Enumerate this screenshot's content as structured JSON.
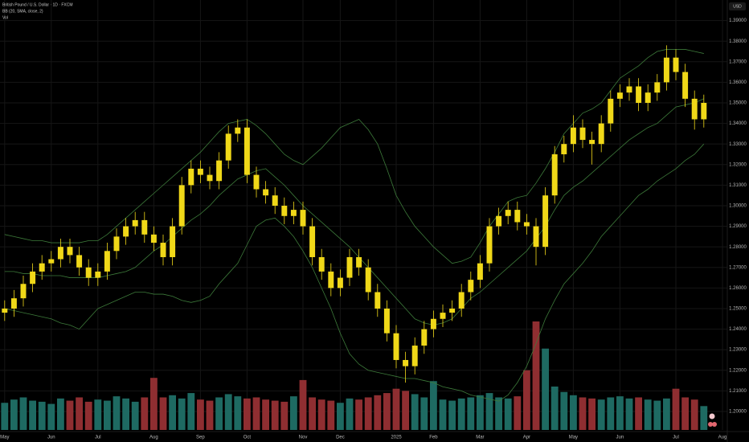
{
  "header": {
    "symbol": "British Pound / U.S. Dollar · 1D · FXCM",
    "indicator": "BB (20, SMA, close, 2)",
    "volume_label": "Vol",
    "currency": "USD"
  },
  "chart_data": {
    "type": "candlestick",
    "categories": [
      "May",
      null,
      null,
      null,
      null,
      "Jun",
      null,
      null,
      null,
      null,
      "Jul",
      null,
      null,
      null,
      null,
      null,
      "Aug",
      null,
      null,
      null,
      null,
      "Sep",
      null,
      null,
      null,
      null,
      "Oct",
      null,
      null,
      null,
      null,
      null,
      "Nov",
      null,
      null,
      null,
      "Dec",
      null,
      null,
      null,
      null,
      null,
      "2025",
      null,
      null,
      null,
      "Feb",
      null,
      null,
      null,
      null,
      "Mar",
      null,
      null,
      null,
      null,
      "Apr",
      null,
      null,
      null,
      null,
      "May",
      null,
      null,
      null,
      null,
      "Jun",
      null,
      null,
      null,
      null,
      null,
      "Jul",
      null,
      null,
      null,
      null,
      "Aug"
    ],
    "open": [
      1.248,
      1.25,
      1.255,
      1.262,
      1.268,
      1.272,
      1.274,
      1.28,
      1.276,
      1.27,
      1.265,
      1.268,
      1.278,
      1.285,
      1.29,
      1.293,
      1.286,
      1.282,
      1.275,
      1.29,
      1.31,
      1.318,
      1.315,
      1.312,
      1.322,
      1.335,
      1.338,
      1.315,
      1.308,
      1.305,
      1.3,
      1.295,
      1.298,
      1.29,
      1.275,
      1.268,
      1.26,
      1.265,
      1.275,
      1.27,
      1.258,
      1.25,
      1.238,
      1.225,
      1.222,
      1.232,
      1.24,
      1.245,
      1.248,
      1.25,
      1.258,
      1.264,
      1.272,
      1.29,
      1.295,
      1.298,
      1.292,
      1.29,
      1.28,
      1.305,
      1.325,
      1.33,
      1.338,
      1.332,
      1.33,
      1.34,
      1.352,
      1.355,
      1.358,
      1.35,
      1.355,
      1.36,
      1.372,
      1.365,
      1.352,
      1.342,
      null,
      null
    ],
    "high": [
      1.254,
      1.259,
      1.266,
      1.272,
      1.276,
      1.278,
      1.284,
      1.284,
      1.28,
      1.274,
      1.272,
      1.282,
      1.289,
      1.294,
      1.297,
      1.297,
      1.29,
      1.286,
      1.294,
      1.314,
      1.322,
      1.322,
      1.319,
      1.326,
      1.339,
      1.342,
      1.342,
      1.319,
      1.312,
      1.309,
      1.304,
      1.302,
      1.302,
      1.294,
      1.279,
      1.272,
      1.269,
      1.279,
      1.279,
      1.274,
      1.262,
      1.254,
      1.242,
      1.229,
      1.236,
      1.244,
      1.249,
      1.252,
      1.254,
      1.262,
      1.268,
      1.276,
      1.294,
      1.299,
      1.302,
      1.302,
      1.296,
      1.294,
      1.309,
      1.329,
      1.334,
      1.344,
      1.342,
      1.336,
      1.344,
      1.356,
      1.359,
      1.362,
      1.362,
      1.359,
      1.364,
      1.378,
      1.376,
      1.369,
      1.356,
      1.354,
      null,
      null
    ],
    "low": [
      1.244,
      1.246,
      1.251,
      1.258,
      1.264,
      1.268,
      1.27,
      1.272,
      1.266,
      1.261,
      1.261,
      1.264,
      1.274,
      1.281,
      1.286,
      1.282,
      1.278,
      1.271,
      1.271,
      1.286,
      1.306,
      1.311,
      1.308,
      1.308,
      1.318,
      1.331,
      1.311,
      1.304,
      1.301,
      1.296,
      1.291,
      1.291,
      1.286,
      1.271,
      1.264,
      1.256,
      1.256,
      1.261,
      1.266,
      1.254,
      1.246,
      1.234,
      1.221,
      1.214,
      1.218,
      1.228,
      1.236,
      1.241,
      1.244,
      1.246,
      1.254,
      1.26,
      1.268,
      1.286,
      1.291,
      1.288,
      1.286,
      1.271,
      1.276,
      1.301,
      1.321,
      1.326,
      1.328,
      1.32,
      1.326,
      1.336,
      1.348,
      1.351,
      1.346,
      1.346,
      1.351,
      1.356,
      1.361,
      1.348,
      1.337,
      1.338,
      null,
      null
    ],
    "close": [
      1.25,
      1.255,
      1.262,
      1.268,
      1.272,
      1.274,
      1.28,
      1.276,
      1.27,
      1.265,
      1.268,
      1.278,
      1.285,
      1.29,
      1.293,
      1.286,
      1.282,
      1.275,
      1.29,
      1.31,
      1.318,
      1.315,
      1.312,
      1.322,
      1.335,
      1.338,
      1.315,
      1.308,
      1.305,
      1.3,
      1.295,
      1.298,
      1.29,
      1.275,
      1.268,
      1.26,
      1.265,
      1.275,
      1.27,
      1.258,
      1.25,
      1.238,
      1.225,
      1.222,
      1.232,
      1.24,
      1.245,
      1.248,
      1.25,
      1.258,
      1.264,
      1.272,
      1.29,
      1.295,
      1.298,
      1.292,
      1.29,
      1.28,
      1.305,
      1.325,
      1.33,
      1.338,
      1.332,
      1.33,
      1.34,
      1.352,
      1.355,
      1.358,
      1.35,
      1.355,
      1.36,
      1.372,
      1.365,
      1.352,
      1.342,
      1.35,
      null,
      null
    ],
    "candle_color": "#f0d818",
    "bands": {
      "color": "#3d7a3a",
      "upper": [
        1.286,
        1.285,
        1.284,
        1.283,
        1.283,
        1.282,
        1.282,
        1.282,
        1.282,
        1.283,
        1.283,
        1.286,
        1.29,
        1.294,
        1.298,
        1.302,
        1.306,
        1.31,
        1.314,
        1.318,
        1.322,
        1.326,
        1.331,
        1.336,
        1.34,
        1.341,
        1.342,
        1.339,
        1.335,
        1.33,
        1.325,
        1.322,
        1.32,
        1.324,
        1.328,
        1.333,
        1.338,
        1.34,
        1.342,
        1.337,
        1.33,
        1.318,
        1.305,
        1.297,
        1.29,
        1.285,
        1.28,
        1.276,
        1.272,
        1.273,
        1.275,
        1.282,
        1.29,
        1.296,
        1.302,
        1.304,
        1.305,
        1.311,
        1.318,
        1.326,
        1.335,
        1.34,
        1.345,
        1.347,
        1.35,
        1.356,
        1.362,
        1.365,
        1.368,
        1.372,
        1.375,
        1.376,
        1.376,
        1.376,
        1.375,
        1.374,
        null,
        null
      ],
      "basis": [
        1.268,
        1.268,
        1.267,
        1.267,
        1.266,
        1.266,
        1.266,
        1.265,
        1.265,
        1.265,
        1.265,
        1.266,
        1.267,
        1.268,
        1.27,
        1.274,
        1.278,
        1.281,
        1.285,
        1.289,
        1.293,
        1.296,
        1.3,
        1.305,
        1.309,
        1.313,
        1.315,
        1.317,
        1.318,
        1.314,
        1.31,
        1.305,
        1.3,
        1.296,
        1.292,
        1.288,
        1.284,
        1.28,
        1.275,
        1.27,
        1.265,
        1.26,
        1.255,
        1.25,
        1.245,
        1.243,
        1.242,
        1.243,
        1.245,
        1.25,
        1.255,
        1.258,
        1.262,
        1.266,
        1.27,
        1.274,
        1.278,
        1.284,
        1.29,
        1.298,
        1.305,
        1.309,
        1.312,
        1.316,
        1.32,
        1.324,
        1.328,
        1.332,
        1.335,
        1.338,
        1.34,
        1.344,
        1.348,
        1.349,
        1.35,
        1.352,
        null,
        null
      ],
      "lower": [
        1.25,
        1.249,
        1.248,
        1.247,
        1.246,
        1.245,
        1.243,
        1.242,
        1.24,
        1.245,
        1.25,
        1.252,
        1.254,
        1.256,
        1.258,
        1.258,
        1.257,
        1.257,
        1.256,
        1.254,
        1.253,
        1.254,
        1.256,
        1.262,
        1.267,
        1.272,
        1.281,
        1.29,
        1.293,
        1.294,
        1.29,
        1.285,
        1.278,
        1.27,
        1.26,
        1.25,
        1.238,
        1.228,
        1.223,
        1.22,
        1.219,
        1.218,
        1.217,
        1.216,
        1.216,
        1.215,
        1.214,
        1.212,
        1.211,
        1.21,
        1.208,
        1.207,
        1.206,
        1.205,
        1.208,
        1.214,
        1.222,
        1.233,
        1.245,
        1.254,
        1.262,
        1.267,
        1.272,
        1.278,
        1.285,
        1.29,
        1.295,
        1.3,
        1.305,
        1.308,
        1.312,
        1.315,
        1.318,
        1.322,
        1.325,
        1.33,
        null,
        null
      ]
    },
    "volume": {
      "ylim": [
        0,
        100
      ],
      "up_color": "#1e6a62",
      "down_color": "#8f2e31",
      "values": [
        25,
        28,
        30,
        27,
        26,
        24,
        29,
        27,
        30,
        26,
        28,
        27,
        31,
        29,
        26,
        30,
        48,
        30,
        32,
        29,
        34,
        28,
        27,
        30,
        33,
        31,
        29,
        30,
        28,
        27,
        26,
        31,
        46,
        30,
        28,
        27,
        25,
        29,
        28,
        30,
        32,
        34,
        38,
        36,
        33,
        30,
        45,
        28,
        27,
        29,
        30,
        32,
        34,
        30,
        29,
        31,
        55,
        100,
        75,
        40,
        35,
        32,
        30,
        29,
        28,
        30,
        31,
        29,
        30,
        28,
        27,
        29,
        38,
        30,
        28,
        22,
        null,
        null
      ]
    },
    "ylim": [
      1.191,
      1.4
    ],
    "yticks": [
      {
        "value": 1.39,
        "label": "1.39000"
      },
      {
        "value": 1.38,
        "label": "1.38000"
      },
      {
        "value": 1.37,
        "label": "1.37000"
      },
      {
        "value": 1.36,
        "label": "1.36000"
      },
      {
        "value": 1.35,
        "label": "1.35000"
      },
      {
        "value": 1.34,
        "label": "1.34000"
      },
      {
        "value": 1.33,
        "label": "1.33000"
      },
      {
        "value": 1.32,
        "label": "1.32000"
      },
      {
        "value": 1.31,
        "label": "1.31000"
      },
      {
        "value": 1.3,
        "label": "1.30000"
      },
      {
        "value": 1.29,
        "label": "1.29000"
      },
      {
        "value": 1.28,
        "label": "1.28000"
      },
      {
        "value": 1.27,
        "label": "1.27000"
      },
      {
        "value": 1.26,
        "label": "1.26000"
      },
      {
        "value": 1.25,
        "label": "1.25000"
      },
      {
        "value": 1.24,
        "label": "1.24000"
      },
      {
        "value": 1.23,
        "label": "1.23000"
      },
      {
        "value": 1.22,
        "label": "1.22000"
      },
      {
        "value": 1.21,
        "label": "1.21000"
      },
      {
        "value": 1.2,
        "label": "1.20000"
      }
    ],
    "grid": true
  }
}
